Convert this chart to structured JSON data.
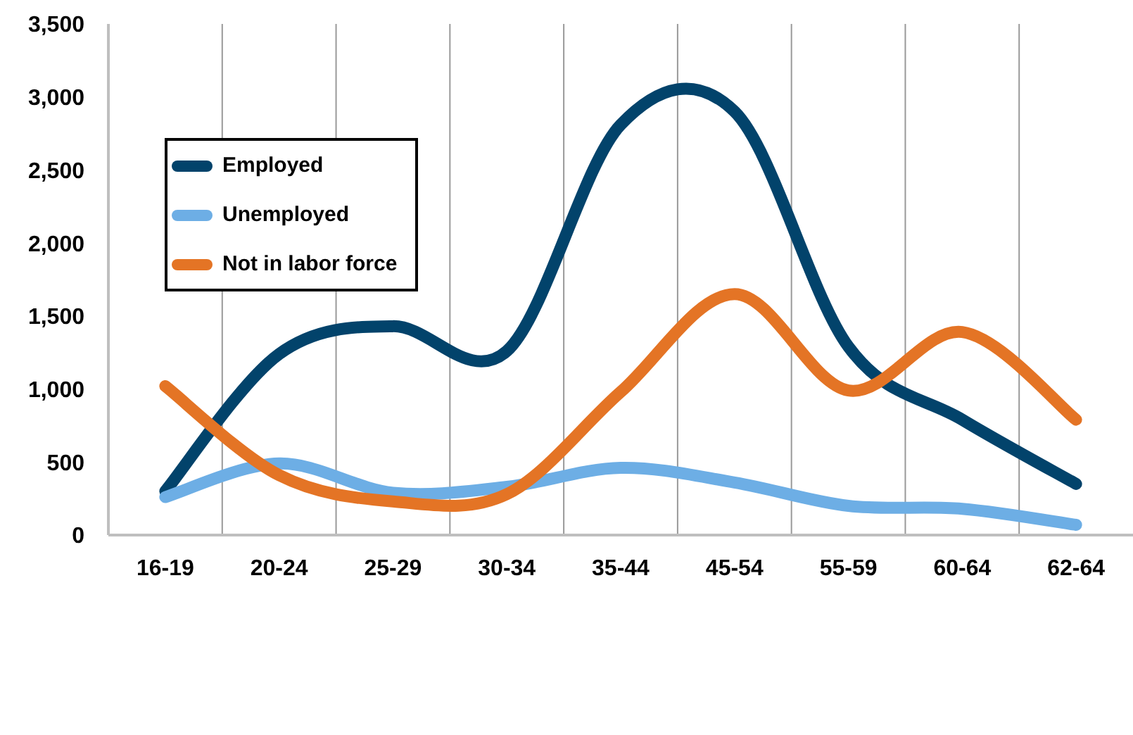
{
  "chart_data": {
    "type": "line",
    "categories": [
      "16-19",
      "20-24",
      "25-29",
      "30-34",
      "35-44",
      "45-54",
      "55-59",
      "60-64",
      "62-64"
    ],
    "series": [
      {
        "name": "Employed",
        "color": "#02436b",
        "values": [
          300,
          1240,
          1430,
          1260,
          2810,
          2900,
          1290,
          790,
          350
        ]
      },
      {
        "name": "Unemployed",
        "color": "#6daee5",
        "values": [
          260,
          490,
          290,
          330,
          460,
          360,
          200,
          180,
          70
        ]
      },
      {
        "name": "Not in labor force",
        "color": "#e47425",
        "values": [
          1020,
          410,
          230,
          280,
          980,
          1650,
          990,
          1390,
          790
        ]
      }
    ],
    "ylim": [
      0,
      3500
    ],
    "yticks": [
      0,
      500,
      {
        "value": 1000,
        "label": "1,000"
      },
      {
        "value": 1500,
        "label": "1,500"
      },
      {
        "value": 2000,
        "label": "2,000"
      },
      {
        "value": 2500,
        "label": "2,500"
      },
      {
        "value": 3000,
        "label": "3,000"
      },
      {
        "value": 3500,
        "label": "3,500"
      }
    ],
    "grid": "x",
    "legend": "top left",
    "line_style": "solid"
  }
}
